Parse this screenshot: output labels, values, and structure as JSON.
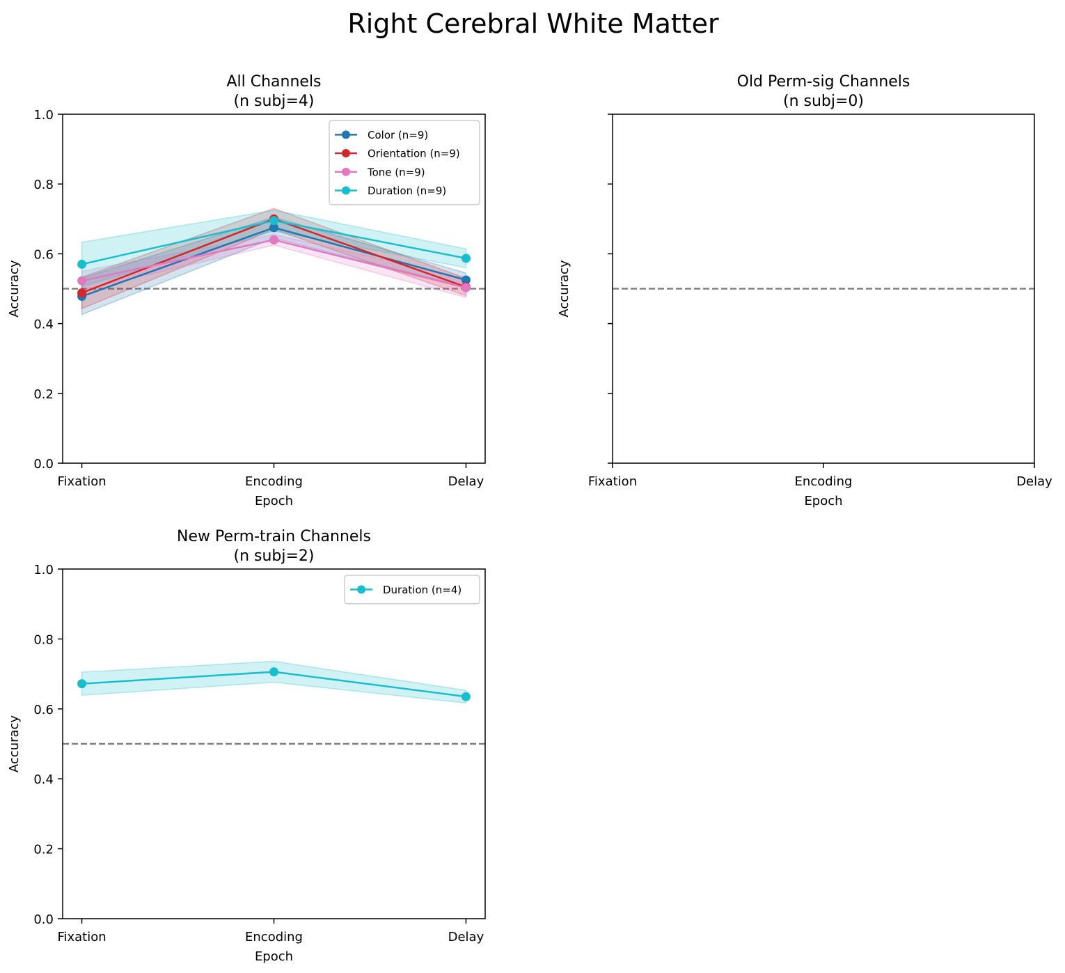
{
  "suptitle": "Right Cerebral White Matter",
  "colors": {
    "Color": "#1f77b4",
    "Orientation": "#d62728",
    "Tone": "#e377c2",
    "Duration": "#17becf",
    "chance": "#808080"
  },
  "chart_data": [
    {
      "type": "line",
      "title_lines": [
        "All Channels",
        "(n subj=4)"
      ],
      "xlabel": "Epoch",
      "ylabel": "Accuracy",
      "categories": [
        "Fixation",
        "Encoding",
        "Delay"
      ],
      "ylim": [
        0,
        1.0
      ],
      "yticks": [
        "0.0",
        "0.2",
        "0.4",
        "0.6",
        "0.8",
        "1.0"
      ],
      "show_ytick_labels": true,
      "chance_level": 0.5,
      "legend_position": "upper-right",
      "series": [
        {
          "name": "Color (n=9)",
          "key": "Color",
          "values": [
            0.478,
            0.675,
            0.525
          ],
          "lower": [
            0.426,
            0.645,
            0.505
          ],
          "upper": [
            0.53,
            0.705,
            0.545
          ]
        },
        {
          "name": "Orientation (n=9)",
          "key": "Orientation",
          "values": [
            0.488,
            0.7,
            0.505
          ],
          "lower": [
            0.443,
            0.67,
            0.48
          ],
          "upper": [
            0.533,
            0.73,
            0.53
          ]
        },
        {
          "name": "Tone (n=9)",
          "key": "Tone",
          "values": [
            0.523,
            0.64,
            0.503
          ],
          "lower": [
            0.495,
            0.625,
            0.475
          ],
          "upper": [
            0.55,
            0.655,
            0.53
          ]
        },
        {
          "name": "Duration (n=9)",
          "key": "Duration",
          "values": [
            0.57,
            0.695,
            0.587
          ],
          "lower": [
            0.507,
            0.665,
            0.56
          ],
          "upper": [
            0.633,
            0.725,
            0.614
          ]
        }
      ]
    },
    {
      "type": "line",
      "title_lines": [
        "Old Perm-sig Channels",
        "(n subj=0)"
      ],
      "xlabel": "Epoch",
      "ylabel": "Accuracy",
      "categories": [
        "Fixation",
        "Encoding",
        "Delay"
      ],
      "ylim": [
        0,
        1.0
      ],
      "yticks": [
        "0.0",
        "0.2",
        "0.4",
        "0.6",
        "0.8",
        "1.0"
      ],
      "show_ytick_labels": false,
      "chance_level": 0.5,
      "series": []
    },
    {
      "type": "line",
      "title_lines": [
        "New Perm-train Channels",
        "(n subj=2)"
      ],
      "xlabel": "Epoch",
      "ylabel": "Accuracy",
      "categories": [
        "Fixation",
        "Encoding",
        "Delay"
      ],
      "ylim": [
        0,
        1.0
      ],
      "yticks": [
        "0.0",
        "0.2",
        "0.4",
        "0.6",
        "0.8",
        "1.0"
      ],
      "show_ytick_labels": true,
      "chance_level": 0.5,
      "legend_position": "upper-right",
      "series": [
        {
          "name": "Duration (n=4)",
          "key": "Duration",
          "values": [
            0.672,
            0.706,
            0.635
          ],
          "lower": [
            0.639,
            0.676,
            0.617
          ],
          "upper": [
            0.705,
            0.736,
            0.653
          ]
        }
      ]
    }
  ]
}
